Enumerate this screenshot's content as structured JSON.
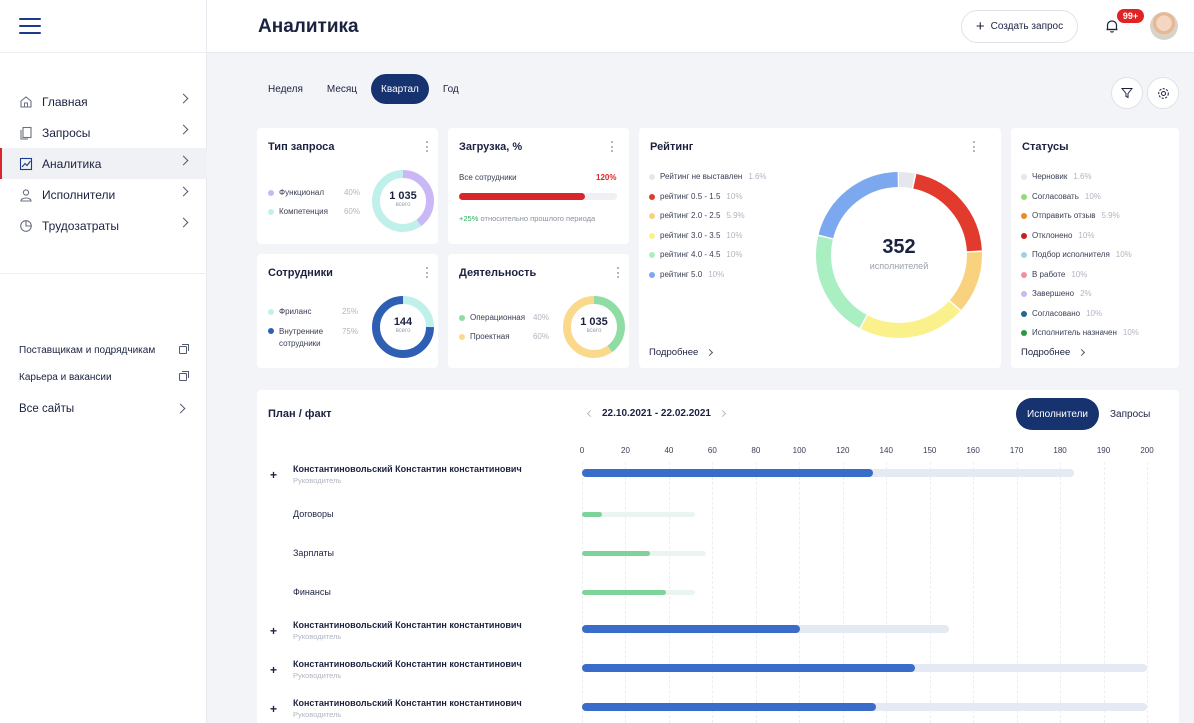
{
  "sidebar": {
    "nav": [
      {
        "label": "Главная",
        "icon": "home-icon"
      },
      {
        "label": "Запросы",
        "icon": "document-icon"
      },
      {
        "label": "Аналитика",
        "icon": "chart-icon"
      },
      {
        "label": "Исполнители",
        "icon": "user-icon"
      },
      {
        "label": "Трудозатраты",
        "icon": "pie-icon"
      }
    ],
    "links": [
      {
        "label": "Поставщикам и подрядчикам"
      },
      {
        "label": "Карьера и вакансии"
      }
    ],
    "all_sites": "Все сайты"
  },
  "header": {
    "title": "Аналитика",
    "create_label": "Создать запрос",
    "badge": "99+"
  },
  "tabs": [
    "Неделя",
    "Месяц",
    "Квартал",
    "Год"
  ],
  "cards": {
    "type": {
      "title": "Тип запроса",
      "items": [
        {
          "label": "Функционал",
          "pct": "40%",
          "value": 40,
          "color": "#c9b8f5"
        },
        {
          "label": "Компетенция",
          "pct": "60%",
          "value": 60,
          "color": "#bff0ea"
        }
      ],
      "center_value": "1 035",
      "center_sub": "всего"
    },
    "load": {
      "title": "Загрузка, %",
      "row_label": "Все сотрудники",
      "row_value": "120%",
      "fill": 0.8,
      "delta": "+25%",
      "delta_text": "относительно прошлого периода"
    },
    "staff": {
      "title": "Сотрудники",
      "items": [
        {
          "label": "Фриланс",
          "pct": "25%",
          "value": 25,
          "color": "#bff0ea"
        },
        {
          "label": "Внутренние сотрудники",
          "pct": "75%",
          "value": 75,
          "color": "#2f5fb3"
        }
      ],
      "center_value": "144",
      "center_sub": "всего"
    },
    "activity": {
      "title": "Деятельность",
      "items": [
        {
          "label": "Операционная",
          "pct": "40%",
          "value": 40,
          "color": "#8fdca4"
        },
        {
          "label": "Проектная",
          "pct": "60%",
          "value": 60,
          "color": "#fad98d"
        }
      ],
      "center_value": "1 035",
      "center_sub": "всего"
    },
    "rating": {
      "title": "Рейтинг",
      "items": [
        {
          "label": "Рейтинг не выставлен",
          "pct": "1.6%",
          "value": 1.6,
          "color": "#e5e7ec"
        },
        {
          "label": "рейтинг 0.5 - 1.5",
          "pct": "10%",
          "value": 10,
          "color": "#e23b2e"
        },
        {
          "label": "рейтинг 2.0 - 2.5",
          "pct": "5.9%",
          "value": 5.9,
          "color": "#f9d27f"
        },
        {
          "label": "рейтинг 3.0 - 3.5",
          "pct": "10%",
          "value": 10,
          "color": "#faf08c"
        },
        {
          "label": "рейтинг 4.0 - 4.5",
          "pct": "10%",
          "value": 10,
          "color": "#a9efc1"
        },
        {
          "label": "рейтинг 5.0",
          "pct": "10%",
          "value": 10,
          "color": "#7ba8ef"
        }
      ],
      "center_value": "352",
      "center_sub": "исполнителей",
      "more": "Подробнее"
    },
    "statuses": {
      "title": "Статусы",
      "items": [
        {
          "label": "Черновик",
          "pct": "1.6%",
          "color": "#e5e7ec"
        },
        {
          "label": "Согласовать",
          "pct": "10%",
          "color": "#8fdc7a"
        },
        {
          "label": "Отправить отзыв",
          "pct": "5.9%",
          "color": "#f08a24"
        },
        {
          "label": "Отклонено",
          "pct": "10%",
          "color": "#c81e1e"
        },
        {
          "label": "Подбор исполнителя",
          "pct": "10%",
          "color": "#9fd0e6"
        },
        {
          "label": "В работе",
          "pct": "10%",
          "color": "#f08fa0"
        },
        {
          "label": "Завершено",
          "pct": "2%",
          "color": "#c9b8f5"
        },
        {
          "label": "Согласовано",
          "pct": "10%",
          "color": "#1f6a8f"
        },
        {
          "label": "Исполнитель назначен",
          "pct": "10%",
          "color": "#2c9a3c"
        }
      ],
      "more": "Подробнее"
    }
  },
  "plan": {
    "title": "План / факт",
    "range": "22.10.2021 - 22.02.2021",
    "seg": [
      "Исполнители",
      "Запросы"
    ],
    "ticks": [
      "0",
      "20",
      "40",
      "60",
      "80",
      "100",
      "120",
      "140",
      "150",
      "160",
      "170",
      "180",
      "190",
      "200"
    ],
    "rows": [
      {
        "kind": "person",
        "name": "Константиновольский Константин константинович",
        "role": "Руководитель",
        "plan": 0.87,
        "fact": 0.515,
        "color": "#3a6cc9"
      },
      {
        "kind": "sub",
        "name": "Договоры",
        "plan": 0.2,
        "fact": 0.035,
        "color": "#7ed39a"
      },
      {
        "kind": "sub",
        "name": "Зарплаты",
        "plan": 0.22,
        "fact": 0.12,
        "color": "#7ed39a"
      },
      {
        "kind": "sub",
        "name": "Финансы",
        "plan": 0.2,
        "fact": 0.148,
        "color": "#7ed39a"
      },
      {
        "kind": "person",
        "name": "Константиновольский Константин константинович",
        "role": "Руководитель",
        "plan": 0.65,
        "fact": 0.385,
        "color": "#3a6cc9"
      },
      {
        "kind": "person",
        "name": "Константиновольский Константин константинович",
        "role": "Руководитель",
        "plan": 1.0,
        "fact": 0.59,
        "color": "#3a6cc9"
      },
      {
        "kind": "person",
        "name": "Константиновольский Константин константинович",
        "role": "Руководитель",
        "plan": 1.0,
        "fact": 0.52,
        "color": "#3a6cc9"
      }
    ]
  }
}
